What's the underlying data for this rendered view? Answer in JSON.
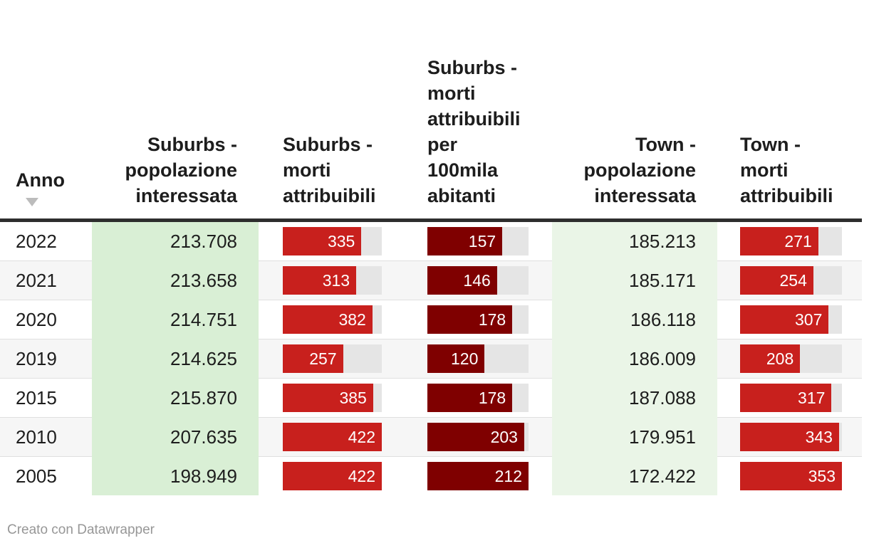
{
  "chart_data": {
    "type": "table",
    "title": "",
    "sort_indicator": {
      "column": "Anno",
      "direction": "desc",
      "icon": "triangle-down-icon"
    },
    "columns": [
      {
        "id": "anno",
        "label": "Anno",
        "align": "left",
        "cell": "text",
        "sorted": true
      },
      {
        "id": "suburbs_pop",
        "label": "Suburbs -\npopolazione\ninteressata",
        "align": "right",
        "cell": "heatmap",
        "bg_color": "#d9efd5"
      },
      {
        "id": "suburbs_deaths",
        "label": "Suburbs -\nmorti\nattribuibili",
        "align": "left",
        "cell": "bar",
        "bar_color": "#c8201d",
        "bar_max": 422
      },
      {
        "id": "suburbs_rate",
        "label": "Suburbs -\nmorti\nattribuibili\nper\n100mila\nabitanti",
        "align": "left",
        "cell": "bar",
        "bar_color": "#7f0000",
        "bar_max": 212
      },
      {
        "id": "town_pop",
        "label": "Town -\npopolazione\ninteressata",
        "align": "right",
        "cell": "heatmap",
        "bg_color": "#eaf5e7"
      },
      {
        "id": "town_deaths",
        "label": "Town -\nmorti\nattribuibili",
        "align": "left",
        "cell": "bar",
        "bar_color": "#c8201d",
        "bar_max": 353
      }
    ],
    "rows": [
      {
        "anno": "2022",
        "suburbs_pop": "213.708",
        "suburbs_deaths": 335,
        "suburbs_rate": 157,
        "town_pop": "185.213",
        "town_deaths": 271
      },
      {
        "anno": "2021",
        "suburbs_pop": "213.658",
        "suburbs_deaths": 313,
        "suburbs_rate": 146,
        "town_pop": "185.171",
        "town_deaths": 254
      },
      {
        "anno": "2020",
        "suburbs_pop": "214.751",
        "suburbs_deaths": 382,
        "suburbs_rate": 178,
        "town_pop": "186.118",
        "town_deaths": 307
      },
      {
        "anno": "2019",
        "suburbs_pop": "214.625",
        "suburbs_deaths": 257,
        "suburbs_rate": 120,
        "town_pop": "186.009",
        "town_deaths": 208
      },
      {
        "anno": "2015",
        "suburbs_pop": "215.870",
        "suburbs_deaths": 385,
        "suburbs_rate": 178,
        "town_pop": "187.088",
        "town_deaths": 317
      },
      {
        "anno": "2010",
        "suburbs_pop": "207.635",
        "suburbs_deaths": 422,
        "suburbs_rate": 203,
        "town_pop": "179.951",
        "town_deaths": 343
      },
      {
        "anno": "2005",
        "suburbs_pop": "198.949",
        "suburbs_deaths": 422,
        "suburbs_rate": 212,
        "town_pop": "172.422",
        "town_deaths": 353
      }
    ]
  },
  "colors": {
    "bar_red": "#c8201d",
    "bar_dark_red": "#7f0000",
    "heatmap_suburbs": "#d9efd5",
    "heatmap_town": "#eaf5e7",
    "row_stripe": "#f6f6f6",
    "bar_track": "#e5e5e5",
    "header_rule": "#2e2e2e",
    "row_divider": "#e0e0e0",
    "sort_arrow": "#bcbcbc",
    "footer_text": "#979797"
  },
  "footer": {
    "credit": "Creato con Datawrapper"
  }
}
